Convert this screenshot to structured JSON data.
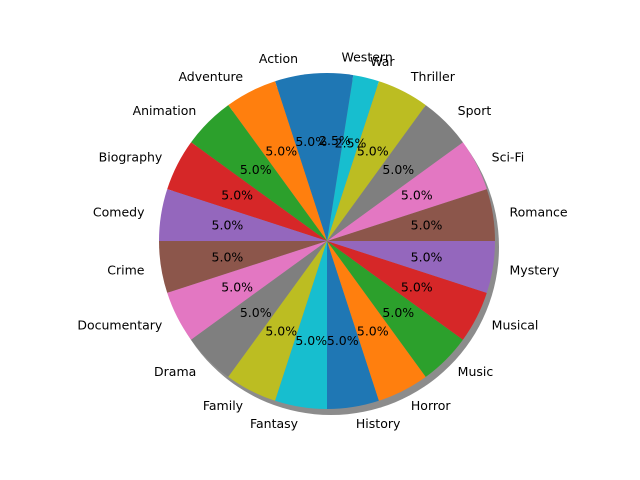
{
  "chart_data": {
    "type": "pie",
    "title": "",
    "shadow": true,
    "start_angle_deg": 90,
    "direction": "counterclockwise",
    "categories": [
      "Action",
      "Adventure",
      "Animation",
      "Biography",
      "Comedy",
      "Crime",
      "Documentary",
      "Drama",
      "Family",
      "Fantasy",
      "History",
      "Horror",
      "Music",
      "Musical",
      "Mystery",
      "Romance",
      "Sci-Fi",
      "Sport",
      "Thriller",
      "War",
      "Western"
    ],
    "values": [
      5.0,
      5.0,
      5.0,
      5.0,
      5.0,
      5.0,
      5.0,
      5.0,
      5.0,
      5.0,
      5.0,
      5.0,
      5.0,
      5.0,
      5.0,
      5.0,
      5.0,
      5.0,
      5.0,
      2.5,
      2.5
    ],
    "pct_labels": [
      "5.0%",
      "5.0%",
      "5.0%",
      "5.0%",
      "5.0%",
      "5.0%",
      "5.0%",
      "5.0%",
      "5.0%",
      "5.0%",
      "5.0%",
      "5.0%",
      "5.0%",
      "5.0%",
      "5.0%",
      "5.0%",
      "5.0%",
      "5.0%",
      "5.0%",
      "2.5%",
      "2.5%"
    ],
    "colors": [
      "#1f77b4",
      "#ff7f0e",
      "#2ca02c",
      "#d62728",
      "#9467bd",
      "#8c564b",
      "#e377c2",
      "#7f7f7f",
      "#bcbd22",
      "#17becf",
      "#1f77b4",
      "#ff7f0e",
      "#2ca02c",
      "#d62728",
      "#9467bd",
      "#8c564b",
      "#e377c2",
      "#7f7f7f",
      "#bcbd22",
      "#17becf",
      "#1f77b4"
    ]
  }
}
